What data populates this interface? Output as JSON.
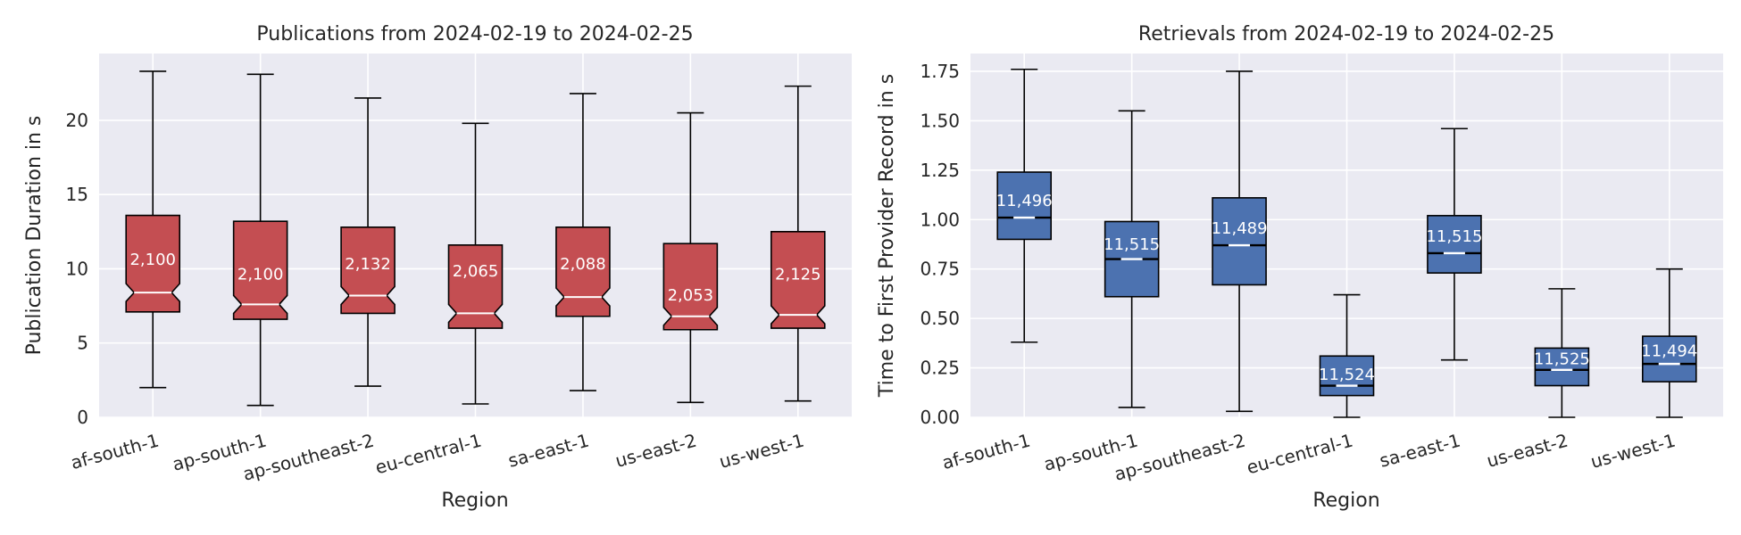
{
  "chart_data": [
    {
      "type": "boxplot",
      "title": "Publications from 2024-02-19 to 2024-02-25",
      "xlabel": "Region",
      "ylabel": "Publication Duration in s",
      "ylim": [
        0,
        24.5
      ],
      "yticks": [
        0,
        5,
        10,
        15,
        20
      ],
      "notched": true,
      "color": "#c44e52",
      "grid": true,
      "categories": [
        "af-south-1",
        "ap-south-1",
        "ap-southeast-2",
        "eu-central-1",
        "sa-east-1",
        "us-east-2",
        "us-west-1"
      ],
      "boxes": [
        {
          "whisker_low": 2.0,
          "q1": 7.1,
          "median": 8.4,
          "q3": 13.6,
          "whisker_high": 23.3,
          "count_label": "2,100",
          "count_y": 10.7
        },
        {
          "whisker_low": 0.8,
          "q1": 6.6,
          "median": 7.6,
          "q3": 13.2,
          "whisker_high": 23.1,
          "count_label": "2,100",
          "count_y": 9.7
        },
        {
          "whisker_low": 2.1,
          "q1": 7.0,
          "median": 8.2,
          "q3": 12.8,
          "whisker_high": 21.5,
          "count_label": "2,132",
          "count_y": 10.4
        },
        {
          "whisker_low": 0.9,
          "q1": 6.0,
          "median": 7.0,
          "q3": 11.6,
          "whisker_high": 19.8,
          "count_label": "2,065",
          "count_y": 9.9
        },
        {
          "whisker_low": 1.8,
          "q1": 6.8,
          "median": 8.1,
          "q3": 12.8,
          "whisker_high": 21.8,
          "count_label": "2,088",
          "count_y": 10.4
        },
        {
          "whisker_low": 1.0,
          "q1": 5.9,
          "median": 6.8,
          "q3": 11.7,
          "whisker_high": 20.5,
          "count_label": "2,053",
          "count_y": 8.3
        },
        {
          "whisker_low": 1.1,
          "q1": 6.0,
          "median": 6.9,
          "q3": 12.5,
          "whisker_high": 22.3,
          "count_label": "2,125",
          "count_y": 9.7
        }
      ]
    },
    {
      "type": "boxplot",
      "title": "Retrievals from 2024-02-19 to 2024-02-25",
      "xlabel": "Region",
      "ylabel": "Time to First Provider Record in s",
      "ylim": [
        0,
        1.84
      ],
      "yticks": [
        0.0,
        0.25,
        0.5,
        0.75,
        1.0,
        1.25,
        1.5,
        1.75
      ],
      "ytick_labels": [
        "0.00",
        "0.25",
        "0.50",
        "0.75",
        "1.00",
        "1.25",
        "1.50",
        "1.75"
      ],
      "notched": false,
      "color": "#4c72b0",
      "grid": true,
      "categories": [
        "af-south-1",
        "ap-south-1",
        "ap-southeast-2",
        "eu-central-1",
        "sa-east-1",
        "us-east-2",
        "us-west-1"
      ],
      "boxes": [
        {
          "whisker_low": 0.38,
          "q1": 0.9,
          "median": 1.01,
          "q3": 1.24,
          "whisker_high": 1.76,
          "count_label": "11,496",
          "count_y": 1.1
        },
        {
          "whisker_low": 0.05,
          "q1": 0.61,
          "median": 0.8,
          "q3": 0.99,
          "whisker_high": 1.55,
          "count_label": "11,515",
          "count_y": 0.88
        },
        {
          "whisker_low": 0.03,
          "q1": 0.67,
          "median": 0.87,
          "q3": 1.11,
          "whisker_high": 1.75,
          "count_label": "11,489",
          "count_y": 0.96
        },
        {
          "whisker_low": 0.0,
          "q1": 0.11,
          "median": 0.16,
          "q3": 0.31,
          "whisker_high": 0.62,
          "count_label": "11,524",
          "count_y": 0.22
        },
        {
          "whisker_low": 0.29,
          "q1": 0.73,
          "median": 0.83,
          "q3": 1.02,
          "whisker_high": 1.46,
          "count_label": "11,515",
          "count_y": 0.92
        },
        {
          "whisker_low": 0.0,
          "q1": 0.16,
          "median": 0.24,
          "q3": 0.35,
          "whisker_high": 0.65,
          "count_label": "11,525",
          "count_y": 0.3
        },
        {
          "whisker_low": 0.0,
          "q1": 0.18,
          "median": 0.27,
          "q3": 0.41,
          "whisker_high": 0.75,
          "count_label": "11,494",
          "count_y": 0.34
        }
      ]
    }
  ]
}
